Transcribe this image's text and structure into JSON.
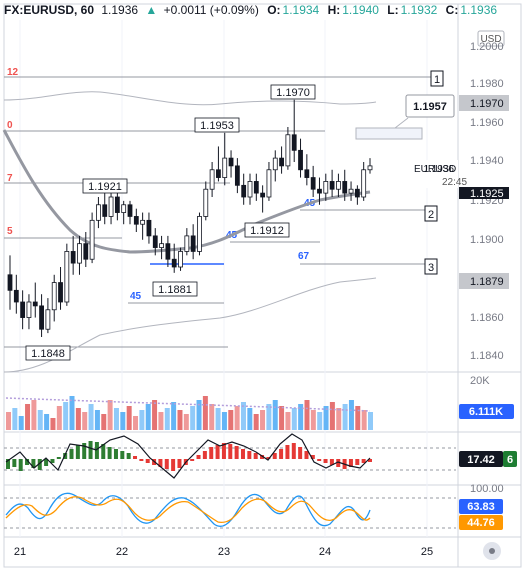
{
  "header": {
    "symbol": "FX:EURUSD, 60",
    "last": "1.1936",
    "arrow": "▲",
    "change": "+0.0011 (+0.09%)",
    "o_label": "O:",
    "o": "1.1934",
    "h_label": "H:",
    "h": "1.1940",
    "l_label": "L:",
    "l": "1.1932",
    "c_label": "C:",
    "c": "1.1936"
  },
  "currency": "USD",
  "price_ticks": [
    "1.2000",
    "1.1980",
    "1.1960",
    "1.1940",
    "1.1920",
    "1.1900",
    "1.1860",
    "1.1840"
  ],
  "price_badges": {
    "p1970": "1.1970",
    "p1925": "1.1925",
    "p1879": "1.1879"
  },
  "current_price_label": {
    "symbol": "EURUSD",
    "price": "1.1936",
    "countdown": "22:45"
  },
  "callout": "1.1957",
  "price_annotations": [
    {
      "id": "a1970",
      "text": "1.1970"
    },
    {
      "id": "a1953",
      "text": "1.1953"
    },
    {
      "id": "a1921",
      "text": "1.1921"
    },
    {
      "id": "a1912",
      "text": "1.1912"
    },
    {
      "id": "a1881",
      "text": "1.1881"
    },
    {
      "id": "a1848",
      "text": "1.1848"
    }
  ],
  "left_level_numbers": [
    "12",
    "0",
    "7",
    "5"
  ],
  "cycle_numbers": [
    "45",
    "45",
    "45",
    "67"
  ],
  "target_boxes": [
    "1",
    "2",
    "3"
  ],
  "volume": {
    "max_label": "20K",
    "value": "6.111K"
  },
  "indicator2": {
    "value": "17.42",
    "extra": "6"
  },
  "oscillator": {
    "top_label": "100.00",
    "k": "63.83",
    "d": "44.76"
  },
  "x_labels": [
    "21",
    "22",
    "23",
    "24",
    "25"
  ],
  "colors": {
    "up": "#26a69a",
    "down": "#ef5350",
    "accent": "#2962ff"
  },
  "chart_data": {
    "type": "candlestick",
    "instrument": "FX:EURUSD",
    "interval": "60",
    "ylim": [
      1.183,
      1.201
    ],
    "x_categories": [
      "21",
      "22",
      "23",
      "24",
      "25"
    ],
    "candles": [
      [
        1.188,
        1.189,
        1.1862,
        1.1872
      ],
      [
        1.1872,
        1.188,
        1.186,
        1.1866
      ],
      [
        1.1866,
        1.1872,
        1.1852,
        1.1858
      ],
      [
        1.1858,
        1.187,
        1.1852,
        1.1866
      ],
      [
        1.1866,
        1.1876,
        1.1858,
        1.1864
      ],
      [
        1.1864,
        1.187,
        1.1848,
        1.1852
      ],
      [
        1.1852,
        1.1868,
        1.185,
        1.1862
      ],
      [
        1.1862,
        1.188,
        1.1856,
        1.1876
      ],
      [
        1.1876,
        1.1884,
        1.1862,
        1.1866
      ],
      [
        1.1866,
        1.1896,
        1.1864,
        1.1892
      ],
      [
        1.1892,
        1.19,
        1.188,
        1.1886
      ],
      [
        1.1886,
        1.19,
        1.188,
        1.1896
      ],
      [
        1.1896,
        1.1902,
        1.1884,
        1.1888
      ],
      [
        1.1888,
        1.1912,
        1.1886,
        1.1908
      ],
      [
        1.1908,
        1.192,
        1.1904,
        1.1916
      ],
      [
        1.1916,
        1.1922,
        1.1906,
        1.191
      ],
      [
        1.191,
        1.1922,
        1.1906,
        1.192
      ],
      [
        1.192,
        1.1924,
        1.1908,
        1.1912
      ],
      [
        1.1912,
        1.1918,
        1.1906,
        1.1916
      ],
      [
        1.1916,
        1.1918,
        1.1906,
        1.191
      ],
      [
        1.191,
        1.1914,
        1.1902,
        1.1906
      ],
      [
        1.1906,
        1.1912,
        1.1898,
        1.1908
      ],
      [
        1.1908,
        1.1912,
        1.1896,
        1.19
      ],
      [
        1.19,
        1.1904,
        1.189,
        1.1894
      ],
      [
        1.1894,
        1.19,
        1.1888,
        1.1896
      ],
      [
        1.1896,
        1.19,
        1.1884,
        1.1888
      ],
      [
        1.1888,
        1.1896,
        1.1881,
        1.1884
      ],
      [
        1.1884,
        1.1894,
        1.1882,
        1.1892
      ],
      [
        1.1892,
        1.1904,
        1.189,
        1.19
      ],
      [
        1.19,
        1.1906,
        1.1888,
        1.1892
      ],
      [
        1.1892,
        1.1912,
        1.189,
        1.191
      ],
      [
        1.191,
        1.1928,
        1.1908,
        1.1924
      ],
      [
        1.1924,
        1.1938,
        1.192,
        1.1934
      ],
      [
        1.1934,
        1.1946,
        1.1928,
        1.193
      ],
      [
        1.193,
        1.1953,
        1.1926,
        1.194
      ],
      [
        1.194,
        1.1944,
        1.193,
        1.1936
      ],
      [
        1.1936,
        1.194,
        1.1922,
        1.1926
      ],
      [
        1.1926,
        1.1932,
        1.1916,
        1.192
      ],
      [
        1.192,
        1.1932,
        1.1916,
        1.1928
      ],
      [
        1.1928,
        1.1932,
        1.1918,
        1.1922
      ],
      [
        1.1922,
        1.1926,
        1.1912,
        1.192
      ],
      [
        1.192,
        1.1938,
        1.1918,
        1.1934
      ],
      [
        1.1934,
        1.1944,
        1.1928,
        1.194
      ],
      [
        1.194,
        1.1946,
        1.1932,
        1.1936
      ],
      [
        1.1936,
        1.1956,
        1.1934,
        1.1952
      ],
      [
        1.1952,
        1.197,
        1.1938,
        1.1944
      ],
      [
        1.1944,
        1.195,
        1.193,
        1.1934
      ],
      [
        1.1934,
        1.1942,
        1.1926,
        1.193
      ],
      [
        1.193,
        1.1936,
        1.192,
        1.1924
      ],
      [
        1.1924,
        1.193,
        1.1916,
        1.1922
      ],
      [
        1.1922,
        1.1932,
        1.1918,
        1.1928
      ],
      [
        1.1928,
        1.1934,
        1.192,
        1.1924
      ],
      [
        1.1924,
        1.1932,
        1.192,
        1.1928
      ],
      [
        1.1928,
        1.1934,
        1.1918,
        1.1922
      ],
      [
        1.1922,
        1.1928,
        1.1918,
        1.1924
      ],
      [
        1.1924,
        1.1926,
        1.1916,
        1.192
      ],
      [
        1.192,
        1.1938,
        1.1918,
        1.1934
      ],
      [
        1.1934,
        1.194,
        1.1932,
        1.1936
      ]
    ]
  }
}
